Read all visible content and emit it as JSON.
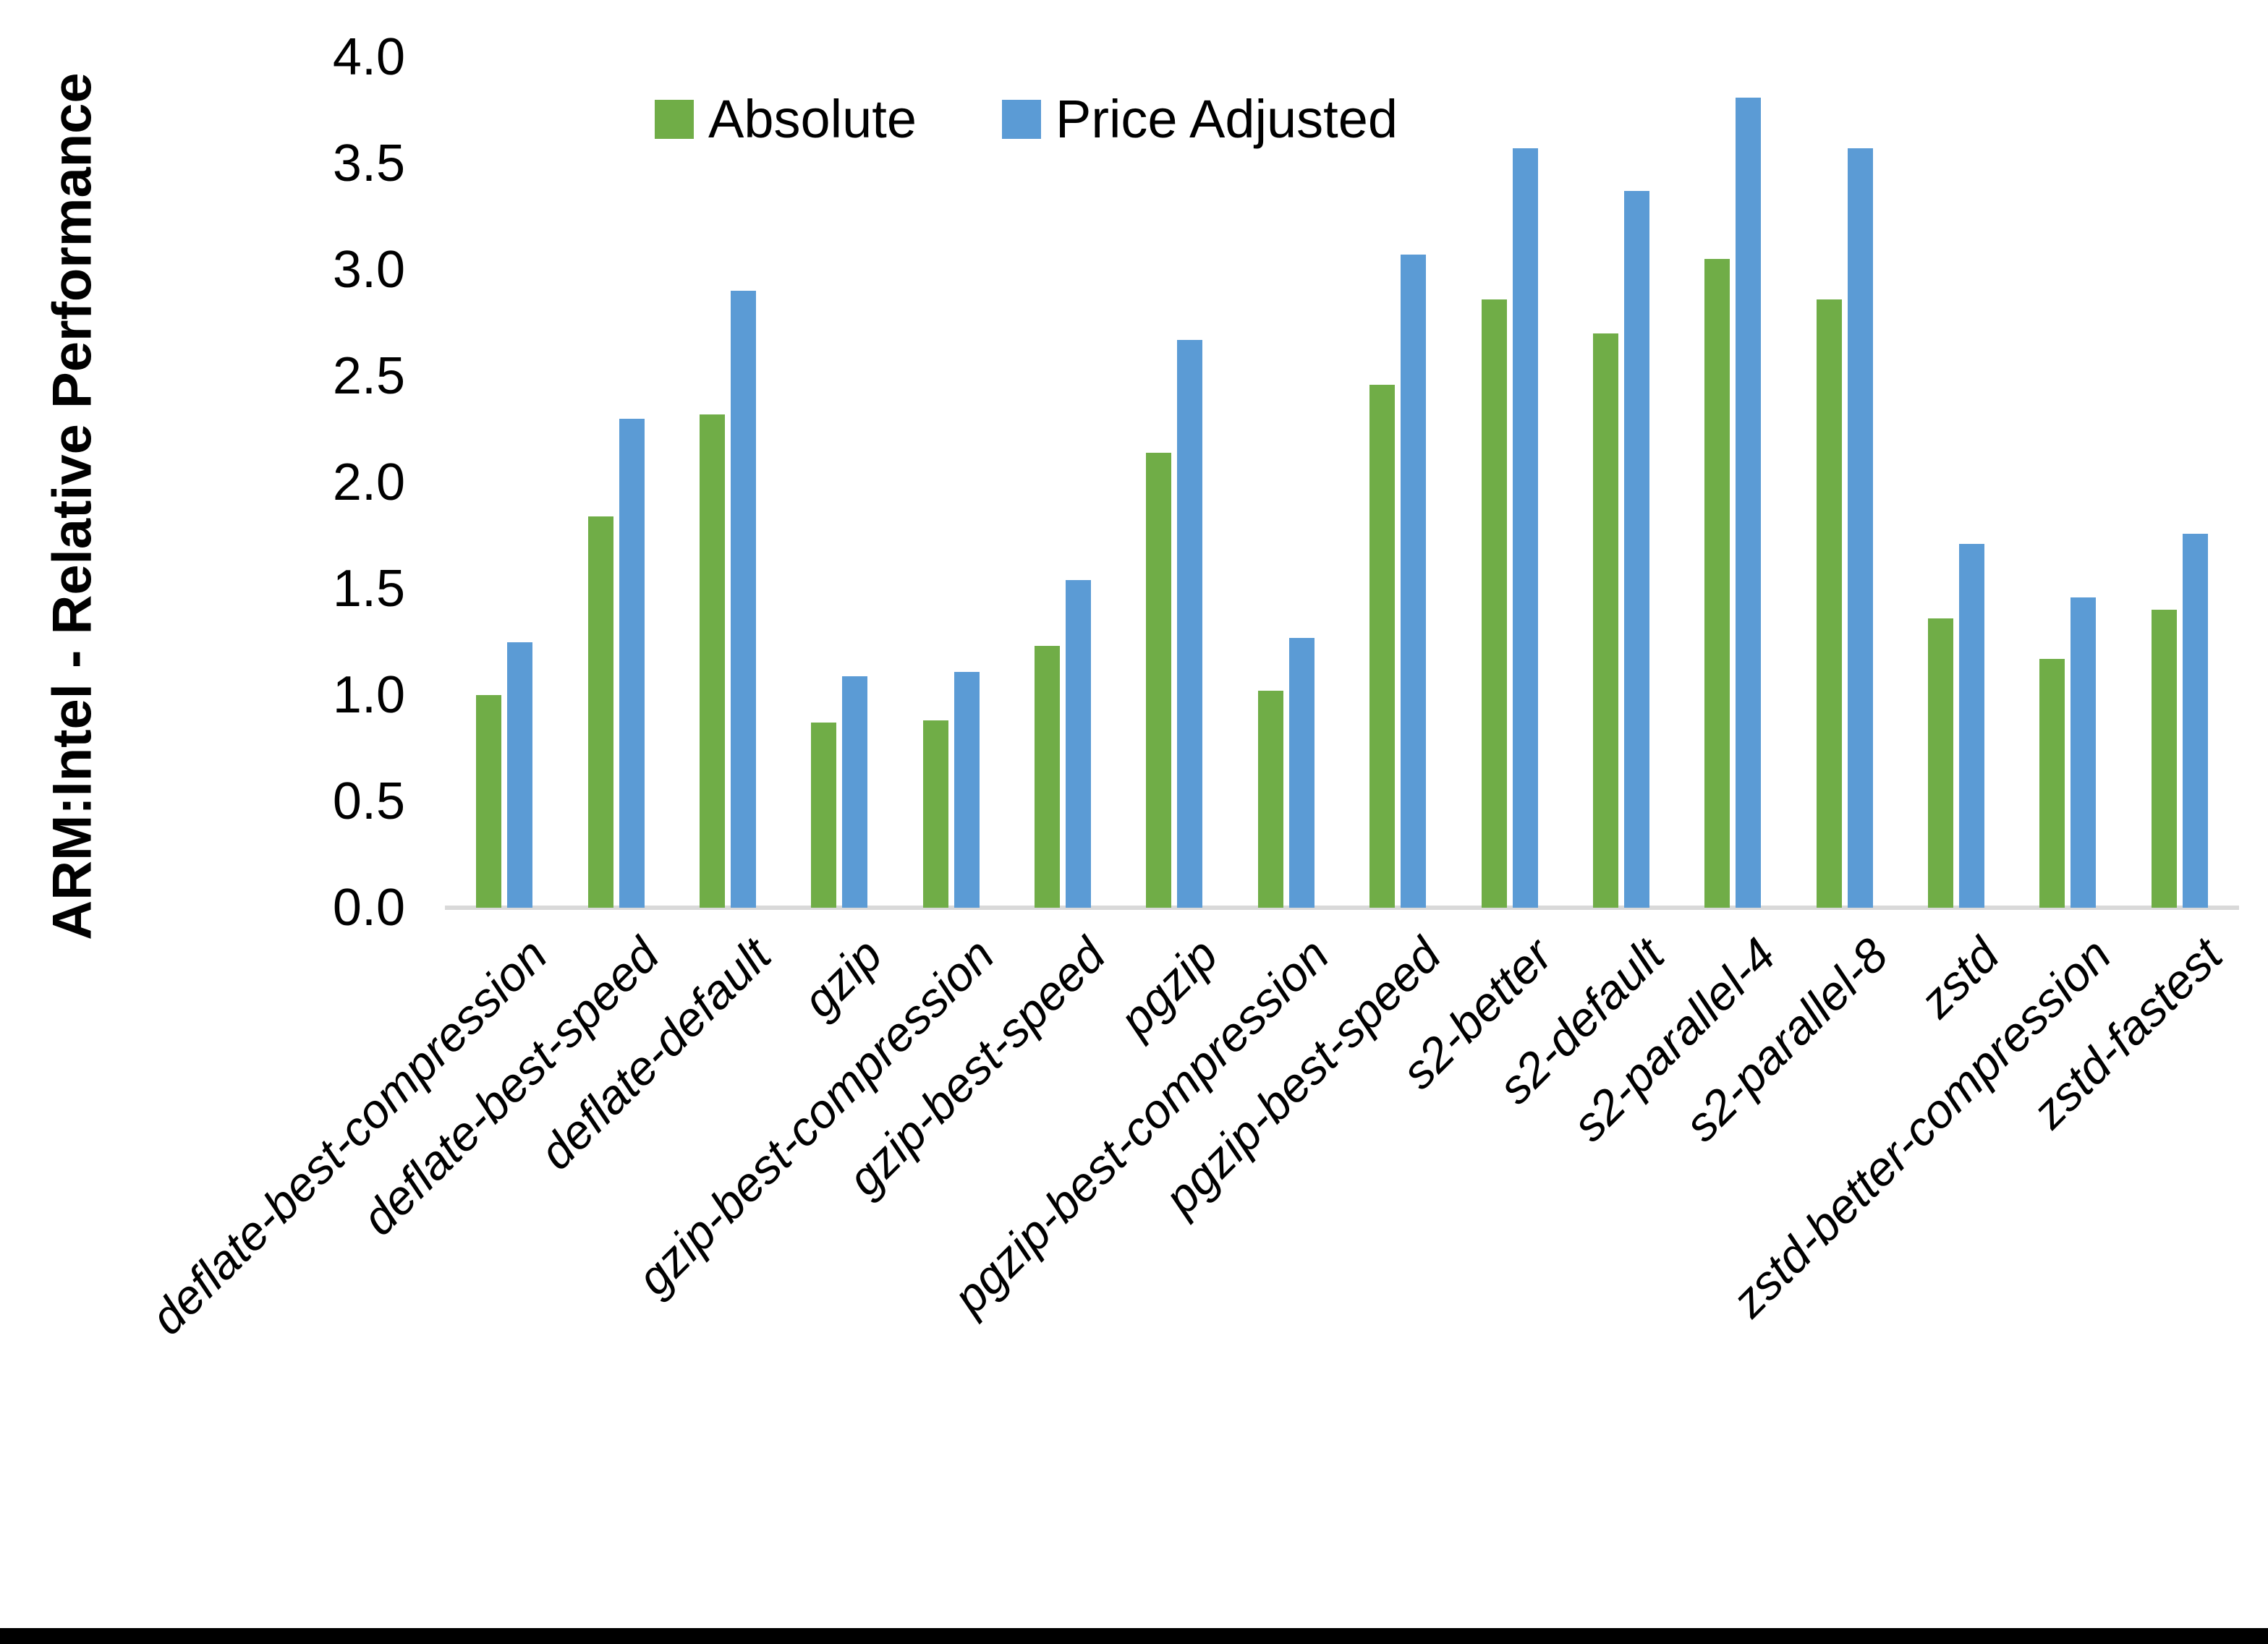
{
  "chart_data": {
    "type": "bar",
    "title": "",
    "xlabel": "",
    "ylabel": "ARM:Intel - Relative Performance",
    "ylim": [
      0.0,
      4.0
    ],
    "ytick_step": 0.5,
    "grid": false,
    "legend_position": "top-center",
    "categories": [
      "deflate-best-compression",
      "deflate-best-speed",
      "deflate-default",
      "gzip",
      "gzip-best-compression",
      "gzip-best-speed",
      "pgzip",
      "pgzip-best-compression",
      "pgzip-best-speed",
      "s2-better",
      "s2-default",
      "s2-parallel-4",
      "s2-parallel-8",
      "zstd",
      "zstd-better-compression",
      "zstd-fastest"
    ],
    "series": [
      {
        "name": "Absolute",
        "color": "#70AD47",
        "values": [
          1.0,
          1.84,
          2.32,
          0.87,
          0.88,
          1.23,
          2.14,
          1.02,
          2.46,
          2.86,
          2.7,
          3.05,
          2.86,
          1.36,
          1.17,
          1.4
        ]
      },
      {
        "name": "Price Adjusted",
        "color": "#5B9BD5",
        "values": [
          1.25,
          2.3,
          2.9,
          1.09,
          1.11,
          1.54,
          2.67,
          1.27,
          3.07,
          3.57,
          3.37,
          3.81,
          3.57,
          1.71,
          1.46,
          1.76
        ]
      }
    ]
  },
  "colors": {
    "axis_line": "#D9D9D9",
    "text": "#000000",
    "bottom_border": "#000000"
  }
}
